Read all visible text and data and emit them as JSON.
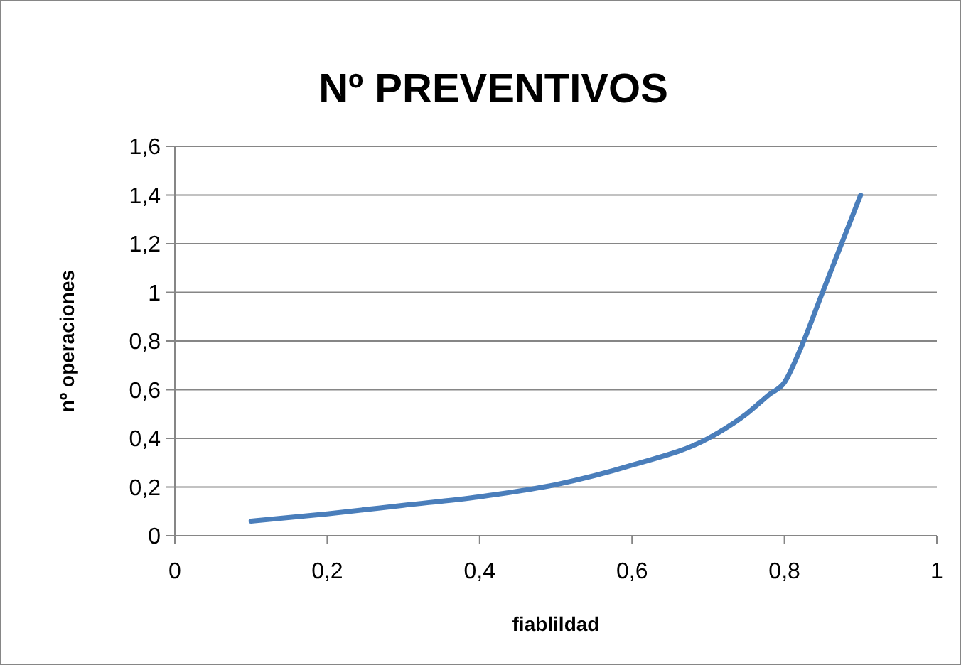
{
  "chart_data": {
    "type": "line",
    "title": "Nº PREVENTIVOS",
    "xlabel": "fiablildad",
    "ylabel": "nº operaciones",
    "x": [
      0.1,
      0.2,
      0.3,
      0.4,
      0.5,
      0.6,
      0.7,
      0.75,
      0.78,
      0.8,
      0.82,
      0.85,
      0.9
    ],
    "series": [
      {
        "color": "#4a7ebb",
        "values": [
          0.06,
          0.09,
          0.125,
          0.16,
          0.21,
          0.29,
          0.4,
          0.5,
          0.58,
          0.63,
          0.76,
          1.0,
          1.4
        ]
      }
    ],
    "xlim": [
      0,
      1
    ],
    "xticks": [
      0,
      {
        "value": 0.2,
        "label": "0,2"
      },
      {
        "value": 0.4,
        "label": "0,4"
      },
      {
        "value": 0.6,
        "label": "0,6"
      },
      {
        "value": 0.8,
        "label": "0,8"
      },
      1
    ],
    "ylim": [
      0,
      1.6
    ],
    "yticks": [
      0,
      {
        "value": 0.2,
        "label": "0,2"
      },
      {
        "value": 0.4,
        "label": "0,4"
      },
      {
        "value": 0.6,
        "label": "0,6"
      },
      {
        "value": 0.8,
        "label": "0,8"
      },
      1,
      {
        "value": 1.2,
        "label": "1,2"
      },
      {
        "value": 1.4,
        "label": "1,4"
      },
      {
        "value": 1.6,
        "label": "1,6"
      }
    ],
    "grid": "y",
    "marker": "none",
    "line_style": "solid"
  }
}
